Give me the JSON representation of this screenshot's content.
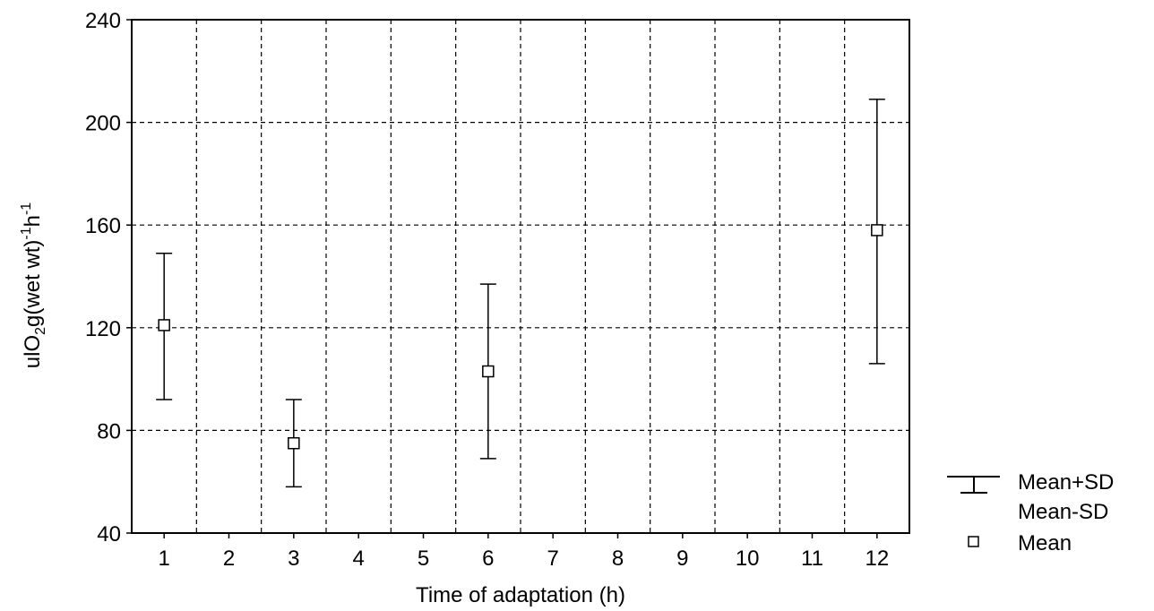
{
  "chart_data": {
    "type": "scatter",
    "subtype": "mean-with-sd-error-bars",
    "x": [
      1,
      3,
      6,
      12
    ],
    "series": [
      {
        "name": "Mean",
        "values": [
          121,
          75,
          103,
          158
        ],
        "upper": [
          149,
          92,
          137,
          209
        ],
        "lower": [
          92,
          58,
          69,
          106
        ]
      }
    ],
    "x_ticks": [
      "1",
      "2",
      "3",
      "4",
      "5",
      "6",
      "7",
      "8",
      "9",
      "10",
      "11",
      "12"
    ],
    "y_ticks": [
      "40",
      "80",
      "120",
      "160",
      "200",
      "240"
    ],
    "xlim": [
      0.5,
      12.5
    ],
    "ylim": [
      40,
      240
    ],
    "xlabel": "Time of adaptation (h)",
    "ylabel": {
      "part1": "ulO",
      "sub": "2",
      "part2": "g(wet wt)",
      "sup1": "-1",
      "part3": "h",
      "sup2": "-1"
    },
    "grid": "dashed",
    "legend": {
      "placement": "right-bottom",
      "sd_upper_label": "Mean+SD",
      "sd_lower_label": "Mean-SD",
      "mean_label": "Mean"
    }
  }
}
